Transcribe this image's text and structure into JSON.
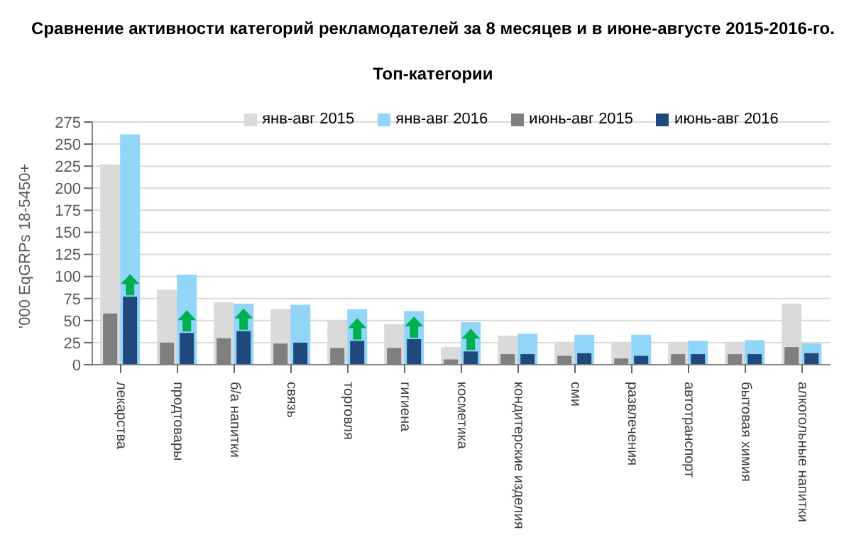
{
  "chart_data": {
    "type": "bar",
    "title": "Сравнение активности категорий рекламодателей за 8 месяцев и в июне-августе 2015-2016-го.",
    "subtitle": "Топ-категории",
    "ylabel": "'000 EqGRPs 18-5450+",
    "categories": [
      "лекарства",
      "продтовары",
      "б/а напитки",
      "связь",
      "торговля",
      "гигиена",
      "косметика",
      "кондитерские изделия",
      "сми",
      "развлечения",
      "автотранспорт",
      "бытовая химия",
      "алкогольные напитки"
    ],
    "series": [
      {
        "name": "янв-авг 2015",
        "color": "#dadada",
        "values": [
          227,
          85,
          71,
          63,
          50,
          46,
          20,
          33,
          26,
          26,
          26,
          26,
          69
        ]
      },
      {
        "name": "янв-авг 2016",
        "color": "#91d5f8",
        "values": [
          261,
          102,
          69,
          68,
          63,
          61,
          48,
          35,
          34,
          34,
          27,
          28,
          24
        ]
      },
      {
        "name": "июнь-авг 2015",
        "color": "#7f7f7f",
        "values": [
          58,
          25,
          30,
          24,
          19,
          19,
          6,
          12,
          10,
          7,
          12,
          12,
          20
        ]
      },
      {
        "name": "июнь-авг 2016",
        "color": "#1f497d",
        "values": [
          77,
          36,
          38,
          25,
          27,
          29,
          15,
          12,
          13,
          10,
          12,
          12,
          13
        ]
      }
    ],
    "ylim": [
      0,
      275
    ],
    "yticks": [
      0,
      25,
      50,
      75,
      100,
      125,
      150,
      175,
      200,
      225,
      250,
      275
    ],
    "grid": "y",
    "legend": "top"
  }
}
